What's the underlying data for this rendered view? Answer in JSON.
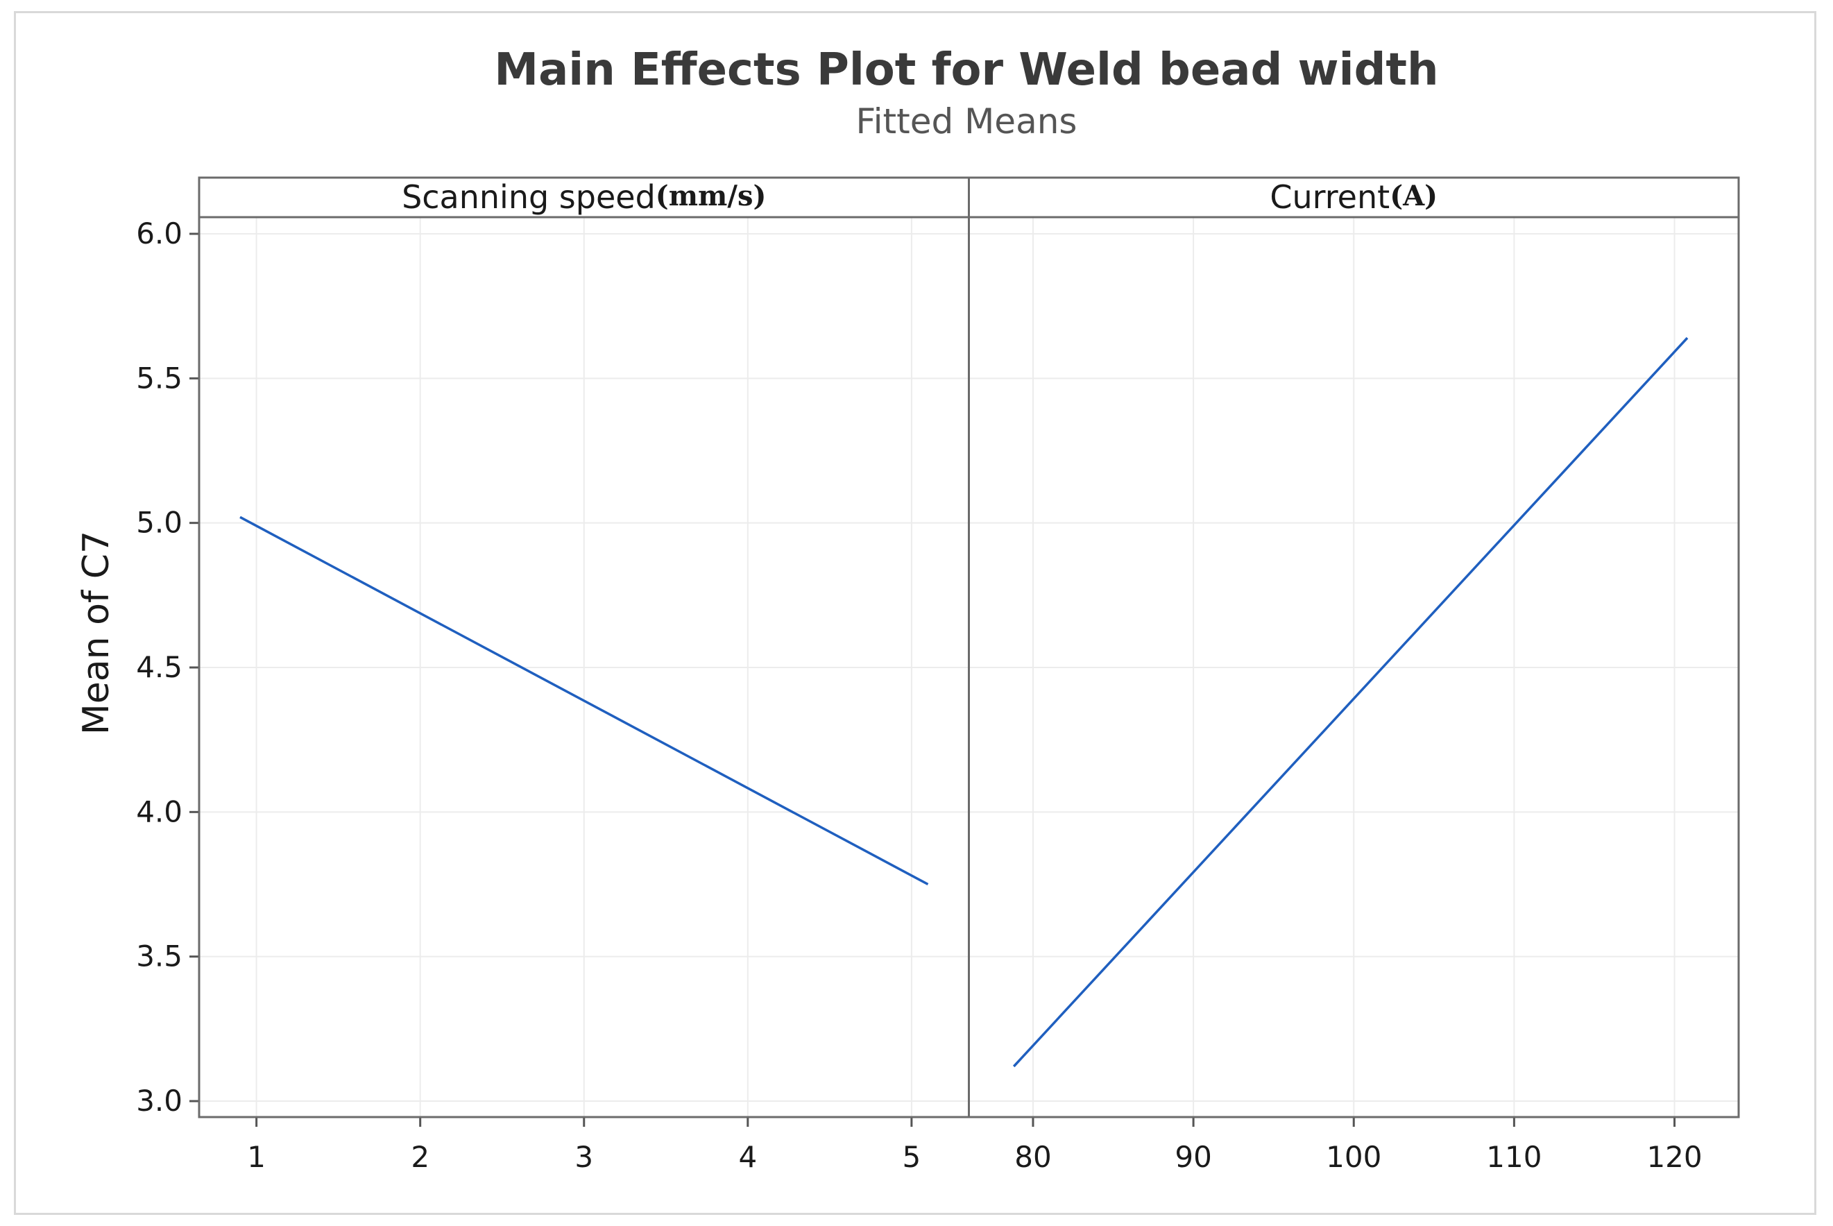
{
  "chart_data": {
    "type": "line",
    "title": "Main Effects Plot for Weld bead width",
    "subtitle": "Fitted Means",
    "ylabel": "Mean of C7",
    "ylim": [
      3.0,
      6.0
    ],
    "yticks": [
      3.0,
      3.5,
      4.0,
      4.5,
      5.0,
      5.5,
      6.0
    ],
    "ytick_labels": [
      "3.0",
      "3.5",
      "4.0",
      "4.5",
      "5.0",
      "5.5",
      "6.0"
    ],
    "grid": true,
    "line_color": "#1f5fbf",
    "panels": [
      {
        "label": "Scanning speed",
        "unit": "(mm/s)",
        "xlim": [
          0.65,
          5.35
        ],
        "xticks": [
          1,
          2,
          3,
          4,
          5
        ],
        "xtick_labels": [
          "1",
          "2",
          "3",
          "4",
          "5"
        ],
        "x": [
          0.9,
          5.1
        ],
        "y": [
          5.02,
          3.75
        ]
      },
      {
        "label": "Current",
        "unit": "(A)",
        "xlim": [
          76.0,
          124.0
        ],
        "xticks": [
          80,
          90,
          100,
          110,
          120
        ],
        "xtick_labels": [
          "80",
          "90",
          "100",
          "110",
          "120"
        ],
        "x": [
          78.8,
          120.8
        ],
        "y": [
          3.12,
          5.64
        ]
      }
    ]
  }
}
